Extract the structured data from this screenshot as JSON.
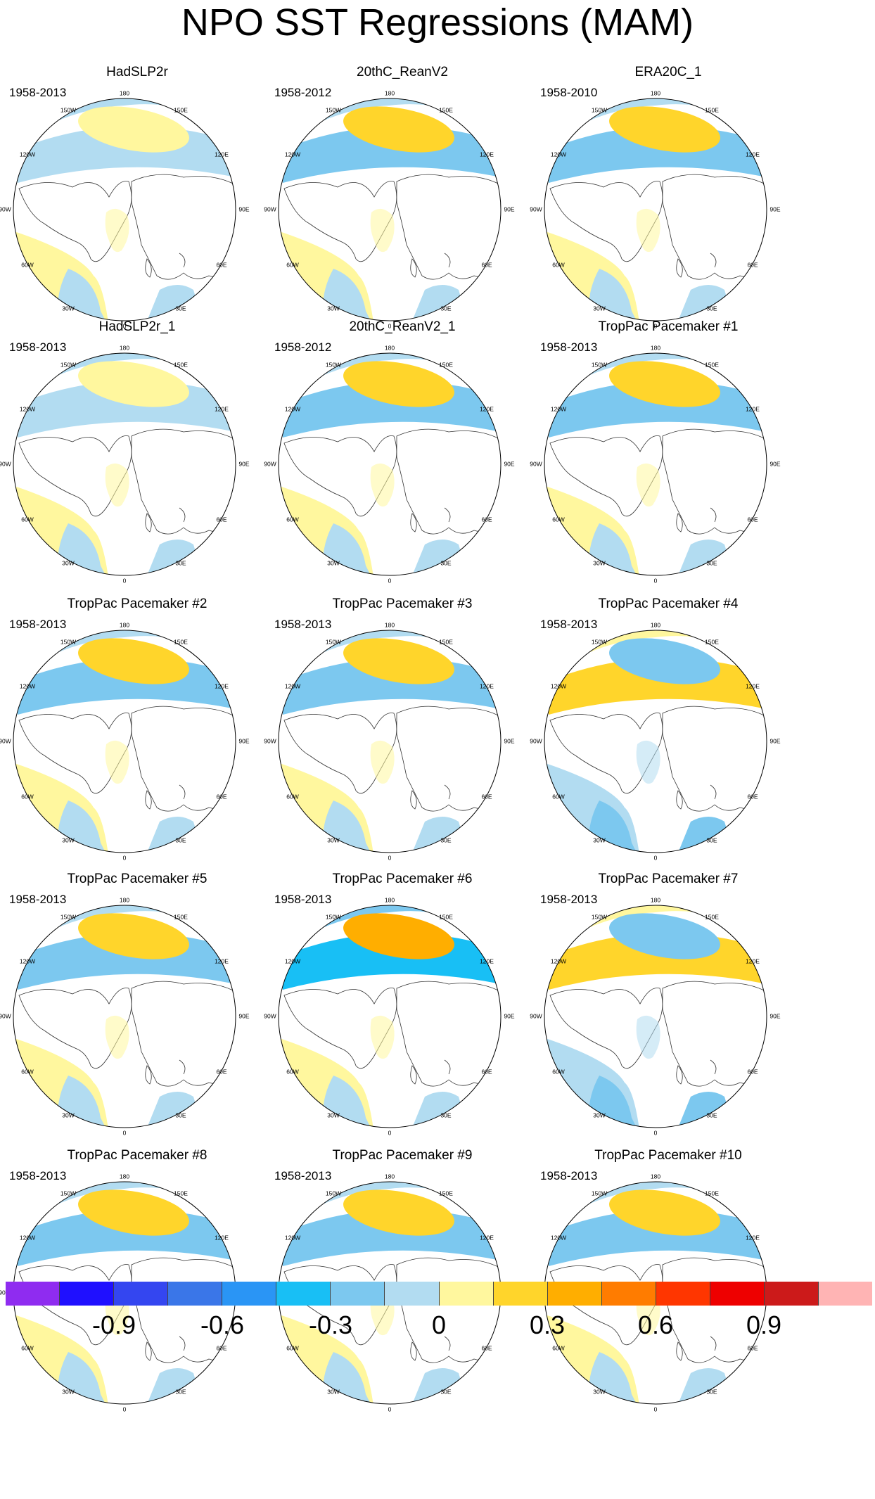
{
  "title": "NPO SST Regressions (MAM)",
  "lon_labels": {
    "top": "180",
    "tl": "150W",
    "tr": "150E",
    "ul": "120W",
    "ur": "120E",
    "ml": "90W",
    "mr": "90E",
    "ll": "60W",
    "lr": "60E",
    "bl": "30W",
    "br": "30E",
    "bottom": "0"
  },
  "colors": {
    "map_background": "#ffffff",
    "land_outline": "#333333",
    "scale": [
      "#8f2cf0",
      "#1f10ff",
      "#3446f0",
      "#3a76e8",
      "#2a95f5",
      "#18bff5",
      "#7cc8ef",
      "#b2dcf1",
      "#fff79e",
      "#ffd52b",
      "#ffae00",
      "#ff7c00",
      "#ff3600",
      "#ee0000",
      "#cc1a1a",
      "#ffb4b4"
    ]
  },
  "chart_data": {
    "type": "map_panels",
    "projection": "north polar stereographic",
    "season": "MAM",
    "colorbar": {
      "levels": [
        -1.05,
        -0.9,
        -0.75,
        -0.6,
        -0.45,
        -0.3,
        -0.15,
        0,
        0.15,
        0.3,
        0.45,
        0.6,
        0.75,
        0.9,
        1.05
      ],
      "tick_labels": [
        {
          "value": -0.9,
          "text": "-0.9"
        },
        {
          "value": -0.6,
          "text": "-0.6"
        },
        {
          "value": -0.3,
          "text": "-0.3"
        },
        {
          "value": 0,
          "text": "0"
        },
        {
          "value": 0.3,
          "text": "0.3"
        },
        {
          "value": 0.6,
          "text": "0.6"
        },
        {
          "value": 0.9,
          "text": "0.9"
        }
      ]
    },
    "panels": [
      {
        "title": "HadSLP2r",
        "period": "1958-2013",
        "pattern": "weak"
      },
      {
        "title": "20thC_ReanV2",
        "period": "1958-2012",
        "pattern": "npo"
      },
      {
        "title": "ERA20C_1",
        "period": "1958-2010",
        "pattern": "npo"
      },
      {
        "title": "HadSLP2r_1",
        "period": "1958-2013",
        "pattern": "weak"
      },
      {
        "title": "20thC_ReanV2_1",
        "period": "1958-2012",
        "pattern": "npo"
      },
      {
        "title": "TropPac Pacemaker #1",
        "period": "1958-2013",
        "pattern": "npo"
      },
      {
        "title": "TropPac Pacemaker #2",
        "period": "1958-2013",
        "pattern": "npo"
      },
      {
        "title": "TropPac Pacemaker #3",
        "period": "1958-2013",
        "pattern": "npo"
      },
      {
        "title": "TropPac Pacemaker #4",
        "period": "1958-2013",
        "pattern": "neg"
      },
      {
        "title": "TropPac Pacemaker #5",
        "period": "1958-2013",
        "pattern": "npo"
      },
      {
        "title": "TropPac Pacemaker #6",
        "period": "1958-2013",
        "pattern": "strong"
      },
      {
        "title": "TropPac Pacemaker #7",
        "period": "1958-2013",
        "pattern": "neg"
      },
      {
        "title": "TropPac Pacemaker #8",
        "period": "1958-2013",
        "pattern": "npo"
      },
      {
        "title": "TropPac Pacemaker #9",
        "period": "1958-2013",
        "pattern": "npo"
      },
      {
        "title": "TropPac Pacemaker #10",
        "period": "1958-2013",
        "pattern": "npo"
      }
    ]
  }
}
